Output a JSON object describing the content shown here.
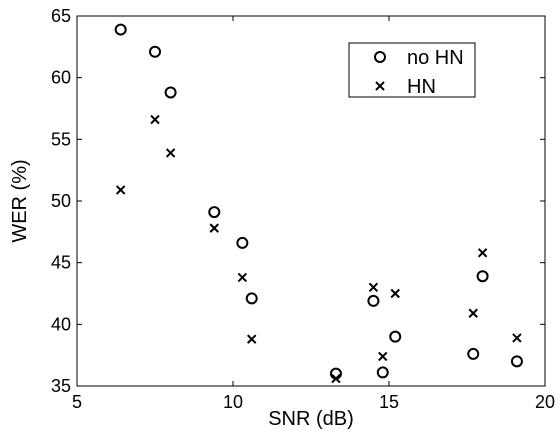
{
  "chart_data": {
    "type": "scatter",
    "title": "",
    "xlabel": "SNR (dB)",
    "ylabel": "WER (%)",
    "xlim": [
      5,
      20
    ],
    "ylim": [
      35,
      65
    ],
    "xticks": [
      "5",
      "10",
      "15",
      "20"
    ],
    "yticks": [
      "35",
      "40",
      "45",
      "50",
      "55",
      "60",
      "65"
    ],
    "grid": false,
    "legend_position": "top-right",
    "series": [
      {
        "name": "no HN",
        "marker": "circle",
        "points": [
          [
            6.4,
            63.9
          ],
          [
            7.5,
            62.1
          ],
          [
            8.0,
            58.8
          ],
          [
            9.4,
            49.1
          ],
          [
            10.3,
            46.6
          ],
          [
            10.6,
            42.1
          ],
          [
            13.3,
            36.0
          ],
          [
            14.5,
            41.9
          ],
          [
            14.8,
            36.1
          ],
          [
            15.2,
            39.0
          ],
          [
            17.7,
            37.6
          ],
          [
            18.0,
            43.9
          ],
          [
            19.1,
            37.0
          ]
        ]
      },
      {
        "name": "HN",
        "marker": "x",
        "points": [
          [
            6.4,
            50.9
          ],
          [
            7.5,
            56.6
          ],
          [
            8.0,
            53.9
          ],
          [
            9.4,
            47.8
          ],
          [
            10.3,
            43.8
          ],
          [
            10.6,
            38.8
          ],
          [
            13.3,
            35.6
          ],
          [
            14.5,
            43.0
          ],
          [
            14.8,
            37.4
          ],
          [
            15.2,
            42.5
          ],
          [
            17.7,
            40.9
          ],
          [
            18.0,
            45.8
          ],
          [
            19.1,
            38.9
          ]
        ]
      }
    ]
  }
}
